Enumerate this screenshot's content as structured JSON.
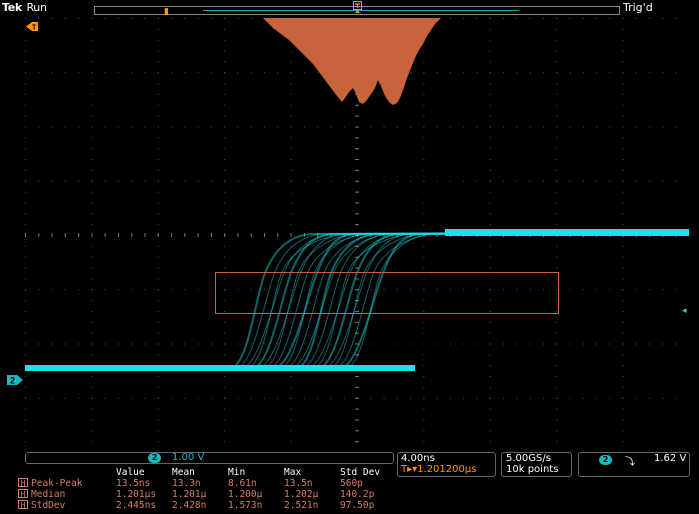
{
  "header": {
    "brand": "Tek",
    "run_state": "Run",
    "trigger_status": "Trig'd"
  },
  "channel": {
    "number": "2",
    "scale": "1.00 V",
    "trace_color": "#1de0e8"
  },
  "timebase": {
    "scale": "4.00ns",
    "position": "1.201200µs",
    "position_prefix": "T▸▾"
  },
  "acquisition": {
    "sample_rate": "5.00GS/s",
    "record_length": "10k points"
  },
  "trigger": {
    "source": "2",
    "slope": "falling-edge",
    "slope_glyph": "⤵",
    "level": "1.62 V"
  },
  "measurements": {
    "columns": [
      "",
      "Value",
      "Mean",
      "Min",
      "Max",
      "Std Dev"
    ],
    "rows": [
      {
        "badge": "H",
        "label": "Peak-Peak",
        "values": [
          "13.5ns",
          "13.3n",
          "8.61n",
          "13.5n",
          "560p"
        ]
      },
      {
        "badge": "H",
        "label": "Median",
        "values": [
          "1.201µs",
          "1.201µ",
          "1.200µ",
          "1.202µ",
          "140.2p"
        ]
      },
      {
        "badge": "H",
        "label": "StdDev",
        "values": [
          "2.445ns",
          "2.428n",
          "1.573n",
          "2.521n",
          "97.50p"
        ]
      }
    ]
  },
  "colors": {
    "histogram": "#c8643c",
    "accent_orange": "#f90",
    "grid": "#444"
  }
}
